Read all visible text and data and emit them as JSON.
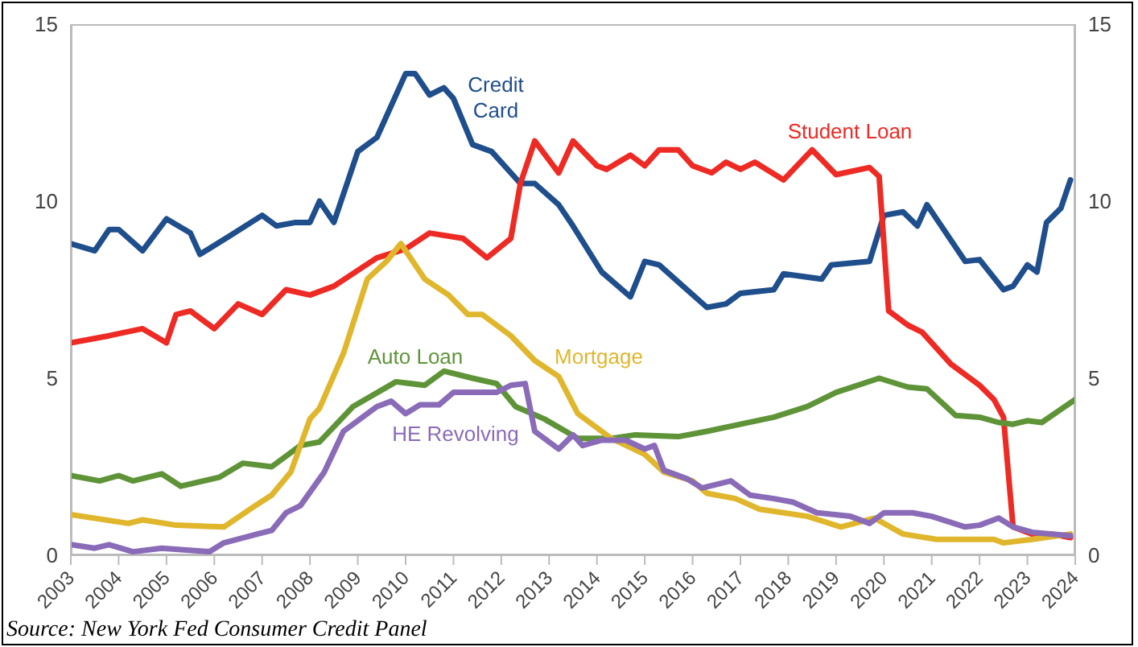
{
  "chart_data": {
    "type": "line",
    "xlim": [
      2003,
      2024
    ],
    "xticks": [
      2003,
      2004,
      2005,
      2006,
      2007,
      2008,
      2009,
      2010,
      2011,
      2012,
      2013,
      2014,
      2015,
      2016,
      2017,
      2018,
      2019,
      2020,
      2021,
      2022,
      2023,
      2024
    ],
    "ylim": [
      0,
      15
    ],
    "yticks": [
      0,
      5,
      10,
      15
    ],
    "y2lim": [
      0,
      15
    ],
    "y2ticks": [
      0,
      5,
      10,
      15
    ],
    "legend": false,
    "marker": "none",
    "line_style": "solid",
    "annotations": [
      "Source: New York Fed Consumer Credit Panel"
    ],
    "series": [
      {
        "name": "Credit Card",
        "color": "#1f4e8c",
        "x": [
          2003,
          2003.5,
          2003.8,
          2004,
          2004.5,
          2005,
          2005.5,
          2005.7,
          2006.3,
          2007,
          2007.3,
          2007.7,
          2008,
          2008.2,
          2008.5,
          2009,
          2009.4,
          2010,
          2010.2,
          2010.5,
          2010.8,
          2011,
          2011.4,
          2011.8,
          2012.4,
          2012.7,
          2013.2,
          2013.5,
          2014.1,
          2014.7,
          2015,
          2015.3,
          2015.8,
          2016.3,
          2016.7,
          2017,
          2017.7,
          2017.9,
          2018.7,
          2018.9,
          2019.7,
          2020,
          2020.4,
          2020.7,
          2020.9,
          2021.7,
          2022,
          2022.5,
          2022.7,
          2023,
          2023.2,
          2023.4,
          2023.7,
          2023.9
        ],
        "values": [
          8.8,
          8.6,
          9.2,
          9.2,
          8.6,
          9.5,
          9.1,
          8.5,
          9,
          9.6,
          9.3,
          9.4,
          9.4,
          10,
          9.4,
          11.4,
          11.8,
          13.6,
          13.6,
          13,
          13.2,
          12.9,
          11.6,
          11.4,
          10.5,
          10.5,
          9.9,
          9.3,
          8,
          7.3,
          8.3,
          8.2,
          7.6,
          7,
          7.1,
          7.4,
          7.5,
          7.95,
          7.8,
          8.2,
          8.3,
          9.6,
          9.7,
          9.3,
          9.9,
          8.3,
          8.35,
          7.5,
          7.6,
          8.2,
          8,
          9.4,
          9.8,
          10.6
        ]
      },
      {
        "name": "Student Loan",
        "color": "#ee2a24",
        "x": [
          2003,
          2003.8,
          2004.5,
          2005,
          2005.2,
          2005.5,
          2006,
          2006.5,
          2007,
          2007.5,
          2008,
          2008.5,
          2009.4,
          2010,
          2010.5,
          2011.2,
          2011.7,
          2012.2,
          2012.4,
          2012.7,
          2013.2,
          2013.5,
          2014,
          2014.2,
          2014.7,
          2015,
          2015.3,
          2015.7,
          2016,
          2016.4,
          2016.7,
          2017,
          2017.3,
          2017.9,
          2018.5,
          2019,
          2019.7,
          2019.9,
          2020.1,
          2020.5,
          2020.8,
          2021.4,
          2022,
          2022.3,
          2022.5,
          2022.7,
          2023.1,
          2023.5,
          2023.9
        ],
        "values": [
          6,
          6.2,
          6.4,
          6,
          6.8,
          6.9,
          6.4,
          7.1,
          6.8,
          7.5,
          7.35,
          7.6,
          8.4,
          8.65,
          9.1,
          8.95,
          8.4,
          8.95,
          10.5,
          11.7,
          10.8,
          11.7,
          11,
          10.9,
          11.3,
          11,
          11.45,
          11.45,
          11,
          10.8,
          11.1,
          10.9,
          11.1,
          10.6,
          11.45,
          10.75,
          10.95,
          10.7,
          6.9,
          6.5,
          6.3,
          5.4,
          4.8,
          4.4,
          3.9,
          0.8,
          0.6,
          0.6,
          0.5
        ]
      },
      {
        "name": "Auto Loan",
        "color": "#5e9437",
        "x": [
          2003,
          2003.6,
          2004,
          2004.3,
          2004.9,
          2005.3,
          2006.1,
          2006.6,
          2007.2,
          2007.8,
          2008.2,
          2008.9,
          2009.8,
          2010.4,
          2010.8,
          2011.4,
          2011.9,
          2012.3,
          2012.9,
          2013.6,
          2014.3,
          2014.8,
          2015.7,
          2016.3,
          2017,
          2017.7,
          2018.4,
          2019,
          2019.9,
          2020.5,
          2020.9,
          2021.5,
          2022,
          2022.4,
          2022.7,
          2023,
          2023.3,
          2024
        ],
        "values": [
          2.25,
          2.1,
          2.25,
          2.1,
          2.3,
          1.95,
          2.2,
          2.6,
          2.5,
          3.1,
          3.2,
          4.2,
          4.9,
          4.8,
          5.2,
          5,
          4.85,
          4.2,
          3.85,
          3.3,
          3.3,
          3.4,
          3.35,
          3.5,
          3.7,
          3.9,
          4.2,
          4.6,
          5,
          4.75,
          4.7,
          3.95,
          3.9,
          3.75,
          3.7,
          3.8,
          3.75,
          4.4
        ]
      },
      {
        "name": "Mortgage",
        "color": "#e0b62c",
        "x": [
          2003,
          2004.2,
          2004.5,
          2005.2,
          2006.2,
          2006.8,
          2007.2,
          2007.6,
          2008,
          2008.2,
          2008.7,
          2009.2,
          2009.6,
          2009.9,
          2010.4,
          2010.9,
          2011.3,
          2011.6,
          2012.2,
          2012.7,
          2013.2,
          2013.6,
          2013.9,
          2014.3,
          2015,
          2015.4,
          2016,
          2016.3,
          2016.9,
          2017.4,
          2018.4,
          2019.1,
          2019.8,
          2020.4,
          2021.1,
          2022.3,
          2022.5,
          2023.1,
          2023.9
        ],
        "values": [
          1.15,
          0.9,
          1,
          0.85,
          0.8,
          1.35,
          1.7,
          2.35,
          3.85,
          4.15,
          5.7,
          7.8,
          8.3,
          8.8,
          7.8,
          7.35,
          6.8,
          6.8,
          6.2,
          5.5,
          5.05,
          4,
          3.7,
          3.3,
          2.85,
          2.35,
          2.1,
          1.75,
          1.6,
          1.3,
          1.1,
          0.8,
          1.05,
          0.6,
          0.45,
          0.45,
          0.35,
          0.45,
          0.6
        ]
      },
      {
        "name": "HE Revolving",
        "color": "#8a6bb8",
        "x": [
          2003,
          2003.5,
          2003.8,
          2004.3,
          2004.9,
          2005.9,
          2006.2,
          2006.9,
          2007.2,
          2007.5,
          2007.8,
          2008.3,
          2008.7,
          2009.4,
          2009.7,
          2010,
          2010.3,
          2010.7,
          2011,
          2011.9,
          2012.2,
          2012.5,
          2012.7,
          2013.2,
          2013.5,
          2013.7,
          2014.1,
          2014.6,
          2015,
          2015.2,
          2015.4,
          2015.9,
          2016.2,
          2016.8,
          2017.2,
          2017.7,
          2018.1,
          2018.6,
          2019.3,
          2019.7,
          2020,
          2020.6,
          2021,
          2021.7,
          2022,
          2022.4,
          2022.7,
          2023.1,
          2023.9
        ],
        "values": [
          0.3,
          0.2,
          0.3,
          0.1,
          0.2,
          0.1,
          0.35,
          0.6,
          0.7,
          1.2,
          1.4,
          2.35,
          3.5,
          4.2,
          4.35,
          4,
          4.25,
          4.25,
          4.6,
          4.6,
          4.8,
          4.85,
          3.5,
          3,
          3.4,
          3.1,
          3.25,
          3.25,
          3,
          3.1,
          2.4,
          2.15,
          1.9,
          2.1,
          1.7,
          1.6,
          1.5,
          1.2,
          1.1,
          0.9,
          1.2,
          1.2,
          1.1,
          0.8,
          0.85,
          1.05,
          0.8,
          0.65,
          0.55
        ]
      }
    ]
  }
}
